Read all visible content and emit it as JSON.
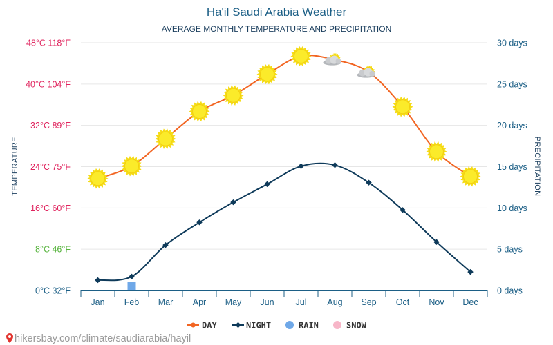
{
  "chart_data": {
    "type": "line",
    "title": "Ha'il Saudi Arabia Weather",
    "subtitle": "AVERAGE MONTHLY TEMPERATURE AND PRECIPITATION",
    "ylabel": "TEMPERATURE",
    "y2label": "PRECIPITATION",
    "categories": [
      "Jan",
      "Feb",
      "Mar",
      "Apr",
      "May",
      "Jun",
      "Jul",
      "Aug",
      "Sep",
      "Oct",
      "Nov",
      "Dec"
    ],
    "ylim": [
      0,
      48
    ],
    "y2lim": [
      0,
      30
    ],
    "yticks": [
      {
        "value": 0,
        "label": "0°C 32°F",
        "color": "#1c5f86"
      },
      {
        "value": 8,
        "label": "8°C 46°F",
        "color": "#55b33b"
      },
      {
        "value": 16,
        "label": "16°C 60°F",
        "color": "#e0245e"
      },
      {
        "value": 24,
        "label": "24°C 75°F",
        "color": "#e0245e"
      },
      {
        "value": 32,
        "label": "32°C 89°F",
        "color": "#e0245e"
      },
      {
        "value": 40,
        "label": "40°C 104°F",
        "color": "#e0245e"
      },
      {
        "value": 48,
        "label": "48°C 118°F",
        "color": "#e0245e"
      }
    ],
    "y2ticks": [
      {
        "value": 0,
        "label": "0 days"
      },
      {
        "value": 5,
        "label": "5 days"
      },
      {
        "value": 10,
        "label": "10 days"
      },
      {
        "value": 15,
        "label": "15 days"
      },
      {
        "value": 20,
        "label": "20 days"
      },
      {
        "value": 25,
        "label": "25 days"
      },
      {
        "value": 30,
        "label": "30 days"
      }
    ],
    "series": [
      {
        "name": "DAY",
        "color": "#f26522",
        "unit": "celsius",
        "values": [
          21.7,
          24.1,
          29.4,
          34.7,
          37.8,
          41.9,
          45.4,
          44.7,
          42.3,
          35.6,
          26.9,
          22.1
        ],
        "icons": [
          "sun",
          "sun",
          "sun",
          "sun",
          "sun",
          "sun",
          "sun",
          "partly-cloudy",
          "partly-cloudy",
          "sun",
          "sun",
          "sun"
        ]
      },
      {
        "name": "NIGHT",
        "color": "#0e3a5a",
        "unit": "celsius",
        "values": [
          2.0,
          2.7,
          8.8,
          13.2,
          17.1,
          20.6,
          24.1,
          24.3,
          20.9,
          15.6,
          9.4,
          3.6
        ]
      },
      {
        "name": "RAIN",
        "color": "#6fa8e8",
        "unit": "days",
        "values": [
          0,
          0.5,
          0,
          0,
          0,
          0,
          0,
          0,
          0,
          0,
          0,
          0
        ]
      },
      {
        "name": "SNOW",
        "color": "#f7b6c8",
        "unit": "days",
        "values": [
          0,
          0,
          0,
          0,
          0,
          0,
          0,
          0,
          0,
          0,
          0,
          0
        ]
      }
    ],
    "legend": [
      "DAY",
      "NIGHT",
      "RAIN",
      "SNOW"
    ],
    "legend_position": "bottom-center",
    "grid": true
  },
  "source_text": "hikersbay.com/climate/saudiarabia/hayil",
  "colors": {
    "title": "#1c5f86",
    "grid": "#e6e6e6",
    "axis": "#1c5f86"
  }
}
